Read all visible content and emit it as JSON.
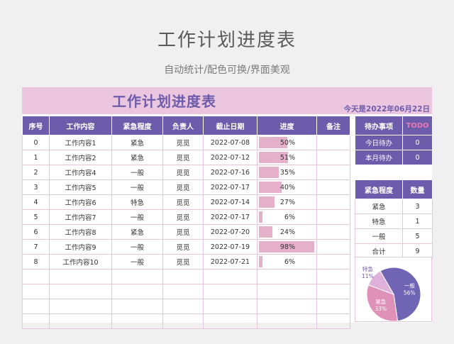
{
  "page": {
    "title": "工作计划进度表",
    "subtitle": "自动统计/配色可换/界面美观"
  },
  "sheet": {
    "title": "工作计划进度表",
    "today": "今天是2022年06月22日",
    "columns": [
      "序号",
      "工作内容",
      "紧急程度",
      "负责人",
      "截止日期",
      "进度",
      "备注"
    ],
    "rows": [
      {
        "no": "0",
        "task": "工作内容1",
        "urgency": "紧急",
        "owner": "觅觅",
        "due": "2022-07-08",
        "progress": "50%",
        "pct": 50,
        "note": ""
      },
      {
        "no": "1",
        "task": "工作内容2",
        "urgency": "紧急",
        "owner": "觅觅",
        "due": "2022-07-12",
        "progress": "51%",
        "pct": 51,
        "note": ""
      },
      {
        "no": "2",
        "task": "工作内容4",
        "urgency": "一般",
        "owner": "觅觅",
        "due": "2022-07-16",
        "progress": "35%",
        "pct": 35,
        "note": ""
      },
      {
        "no": "3",
        "task": "工作内容5",
        "urgency": "一般",
        "owner": "觅觅",
        "due": "2022-07-17",
        "progress": "40%",
        "pct": 40,
        "note": ""
      },
      {
        "no": "4",
        "task": "工作内容6",
        "urgency": "特急",
        "owner": "觅觅",
        "due": "2022-07-14",
        "progress": "27%",
        "pct": 27,
        "note": ""
      },
      {
        "no": "5",
        "task": "工作内容7",
        "urgency": "一般",
        "owner": "觅觅",
        "due": "2022-07-17",
        "progress": "6%",
        "pct": 6,
        "note": ""
      },
      {
        "no": "6",
        "task": "工作内容8",
        "urgency": "紧急",
        "owner": "觅觅",
        "due": "2022-07-20",
        "progress": "24%",
        "pct": 24,
        "note": ""
      },
      {
        "no": "7",
        "task": "工作内容9",
        "urgency": "一般",
        "owner": "觅觅",
        "due": "2022-07-19",
        "progress": "98%",
        "pct": 98,
        "note": ""
      },
      {
        "no": "8",
        "task": "工作内容10",
        "urgency": "一般",
        "owner": "觅觅",
        "due": "2022-07-21",
        "progress": "6%",
        "pct": 6,
        "note": ""
      }
    ],
    "empty_rows": 4
  },
  "todo": {
    "header": "待办事项",
    "tag": "TODO",
    "rows": [
      {
        "label": "今日待办",
        "value": "0"
      },
      {
        "label": "本月待办",
        "value": "0"
      }
    ]
  },
  "stats": {
    "headers": [
      "紧急程度",
      "数量"
    ],
    "rows": [
      {
        "label": "紧急",
        "value": "3"
      },
      {
        "label": "特急",
        "value": "1"
      },
      {
        "label": "一般",
        "value": "5"
      },
      {
        "label": "合计",
        "value": "9"
      }
    ]
  },
  "colors": {
    "accent": "#6c5cab",
    "banner": "#ecc6df",
    "bar": "#e5b0c9",
    "pie_general": "#7064b4",
    "pie_urgent": "#e091b8",
    "pie_special": "#dfb0d9"
  },
  "chart_data": {
    "type": "pie",
    "categories": [
      "一般",
      "紧急",
      "特急"
    ],
    "values": [
      56,
      33,
      11
    ],
    "labels": [
      "56%",
      "33%",
      "11%"
    ]
  }
}
